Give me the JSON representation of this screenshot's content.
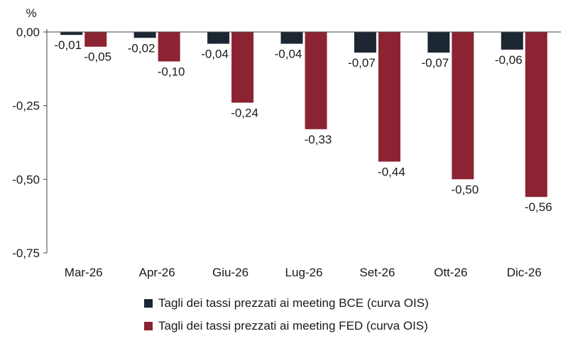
{
  "chart_data": {
    "type": "bar",
    "unit_label": "%",
    "categories": [
      "Mar-26",
      "Apr-26",
      "Giu-26",
      "Lug-26",
      "Set-26",
      "Ott-26",
      "Dic-26"
    ],
    "series": [
      {
        "name": "Tagli dei tassi prezzati ai meeting BCE (curva OIS)",
        "values": [
          -0.01,
          -0.02,
          -0.04,
          -0.04,
          -0.07,
          -0.07,
          -0.06
        ],
        "labels": [
          "-0,01",
          "-0,02",
          "-0,04",
          "-0,04",
          "-0,07",
          "-0,07",
          "-0,06"
        ],
        "color": "#1c2733"
      },
      {
        "name": "Tagli dei tassi prezzati ai meeting FED (curva OIS)",
        "values": [
          -0.05,
          -0.1,
          -0.24,
          -0.33,
          -0.44,
          -0.5,
          -0.56
        ],
        "labels": [
          "-0,05",
          "-0,10",
          "-0,24",
          "-0,33",
          "-0,44",
          "-0,50",
          "-0,56"
        ],
        "color": "#8c2332"
      }
    ],
    "ylim": [
      -0.75,
      0
    ],
    "yticks": [
      0,
      -0.25,
      -0.5,
      -0.75
    ],
    "ytick_labels": [
      "0,00",
      "-0,25",
      "-0,50",
      "-0,75"
    ],
    "xlabel": "",
    "ylabel": "%",
    "title": "",
    "grid": false,
    "legend_position": "bottom"
  }
}
